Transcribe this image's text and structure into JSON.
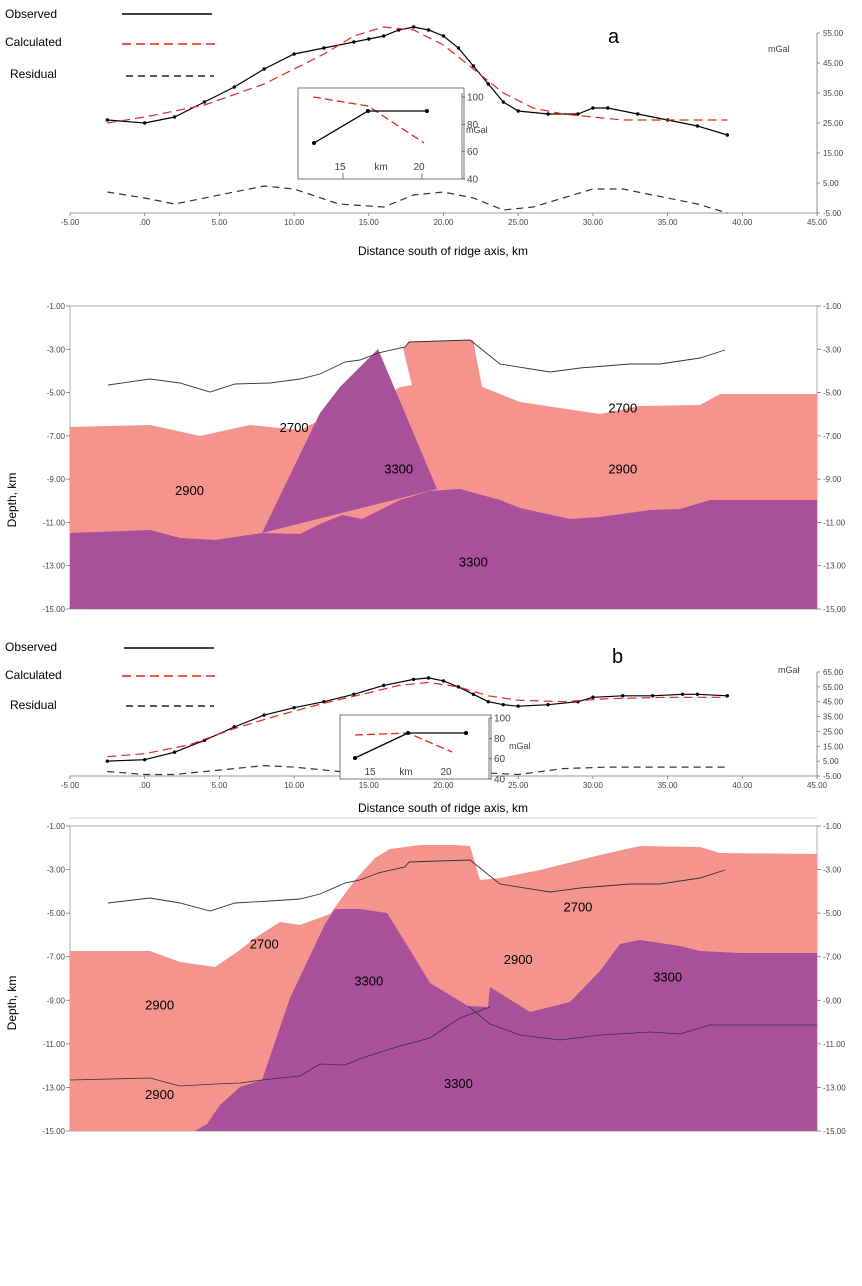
{
  "chart_data": [
    {
      "panel": "a",
      "type": "line",
      "panel_label": "a",
      "xlabel": "Distance south of ridge axis, km",
      "ylabel": "mGal",
      "xlim": [
        -5,
        45
      ],
      "ylim": [
        -5,
        55
      ],
      "xticks": [
        -5,
        0,
        5,
        10,
        15,
        20,
        25,
        30,
        35,
        40,
        45
      ],
      "xtick_labels": [
        "-5.00",
        ".00",
        "5.00",
        "10.00",
        "15.00",
        "20.00",
        "25.00",
        "30.00",
        "35.00",
        "40.00",
        "45.00"
      ],
      "yticks": [
        -5,
        5,
        15,
        25,
        35,
        45,
        55
      ],
      "ytick_labels": [
        "-5.00",
        "5.00",
        "15.00",
        "25.00",
        "35.00",
        "45.00",
        "55.00"
      ],
      "legend": [
        "Observed",
        "Calculated",
        "Residual"
      ],
      "legend_position": "top-left",
      "series": [
        {
          "name": "Observed",
          "color": "#000000",
          "style": "solid-markers",
          "x": [
            -2.5,
            0,
            2,
            4,
            6,
            8,
            10,
            12,
            14,
            15,
            16,
            17,
            18,
            19,
            20,
            21,
            22,
            23,
            24,
            25,
            27,
            29,
            30,
            31,
            33,
            35,
            37,
            39
          ],
          "y": [
            26,
            25,
            27,
            32,
            37,
            43,
            48,
            50,
            52,
            53,
            54,
            56,
            57,
            56,
            54,
            50,
            44,
            38,
            32,
            29,
            28,
            28,
            30,
            30,
            28,
            26,
            24,
            21
          ]
        },
        {
          "name": "Calculated",
          "color": "#e0281e",
          "style": "dashed",
          "x": [
            -2.5,
            0,
            4,
            8,
            12,
            14,
            16,
            18,
            20,
            22,
            24,
            26,
            28,
            30,
            32,
            36,
            39
          ],
          "y": [
            25,
            27,
            31,
            38,
            48,
            54,
            57,
            56,
            51,
            43,
            35,
            30,
            28,
            27,
            26,
            26,
            26
          ]
        },
        {
          "name": "Residual",
          "color": "#333333",
          "style": "dashed",
          "x": [
            -2.5,
            0,
            2,
            5,
            8,
            10,
            13,
            16,
            18,
            20,
            22,
            24,
            26,
            28,
            30,
            32,
            35,
            37,
            39
          ],
          "y": [
            2,
            0,
            -2,
            1,
            4,
            3,
            -2,
            -3,
            1,
            2,
            0,
            -4,
            -3,
            0,
            3,
            3,
            0,
            -2,
            -5
          ]
        }
      ],
      "inset": {
        "xtick_labels": [
          "15",
          "km",
          "20"
        ],
        "yticks": [
          40,
          60,
          80,
          100
        ],
        "ytick_labels": [
          "40",
          "60",
          "80",
          "100"
        ],
        "ylabel": "mGal",
        "observed": {
          "x": [
            11,
            15,
            21
          ],
          "y": [
            66,
            89,
            89
          ]
        },
        "calculated": {
          "x": [
            11,
            15,
            21
          ],
          "y": [
            99,
            91,
            68
          ]
        }
      }
    },
    {
      "panel": "a-model",
      "type": "area",
      "ylabel": "Depth, km",
      "ylim": [
        -15,
        -1
      ],
      "yticks": [
        -1,
        -3,
        -5,
        -7,
        -9,
        -11,
        -13,
        -15
      ],
      "ytick_labels_left": [
        "-1.00",
        "-3.00",
        "-5.00",
        "-7.00",
        "-9.00",
        "-11.00",
        "-13.00",
        "-15.00"
      ],
      "ytick_labels_right": [
        "-1.00",
        "-3.00",
        "-5.00",
        "-7.00",
        "-9.00",
        "-11.00",
        "-13.00",
        "-15.00"
      ],
      "body_labels": [
        {
          "text": "2700",
          "x": 10,
          "y": -6.6
        },
        {
          "text": "2700",
          "x": 32,
          "y": -5.7
        },
        {
          "text": "2900",
          "x": 3,
          "y": -9.5
        },
        {
          "text": "3300",
          "x": 17,
          "y": -8.5
        },
        {
          "text": "2900",
          "x": 32,
          "y": -8.5
        },
        {
          "text": "3300",
          "x": 22,
          "y": -12.8
        }
      ]
    },
    {
      "panel": "b",
      "type": "line",
      "panel_label": "b",
      "xlabel": "Distance south of ridge axis, km",
      "ylabel": "mGal",
      "xlim": [
        -5,
        45
      ],
      "ylim": [
        -5,
        65
      ],
      "xticks": [
        -5,
        0,
        5,
        10,
        15,
        20,
        25,
        30,
        35,
        40,
        45
      ],
      "xtick_labels": [
        "-5.00",
        ".00",
        "5.00",
        "10.00",
        "15.00",
        "20.00",
        "25.00",
        "30.00",
        "35.00",
        "40.00",
        "45.00"
      ],
      "yticks": [
        -5,
        5,
        15,
        25,
        35,
        45,
        55,
        65
      ],
      "ytick_labels": [
        "-5.00",
        "5.00",
        "15.00",
        "25.00",
        "35.00",
        "45.00",
        "55.00",
        "65.00"
      ],
      "legend": [
        "Observed",
        "Calculated",
        "Residual"
      ],
      "legend_position": "top-left",
      "series": [
        {
          "name": "Observed",
          "color": "#000000",
          "style": "solid-markers",
          "x": [
            -2.5,
            0,
            2,
            4,
            6,
            8,
            10,
            12,
            14,
            16,
            18,
            19,
            20,
            21,
            22,
            23,
            24,
            25,
            27,
            29,
            30,
            32,
            34,
            36,
            37,
            39
          ],
          "y": [
            5,
            6,
            11,
            19,
            28,
            36,
            41,
            45,
            50,
            56,
            60,
            61,
            59,
            55,
            50,
            45,
            43,
            42,
            43,
            45,
            48,
            49,
            49,
            50,
            50,
            49
          ]
        },
        {
          "name": "Calculated",
          "color": "#e0281e",
          "style": "dashed",
          "x": [
            -2.5,
            0,
            3,
            6,
            9,
            12,
            15,
            17,
            19,
            21,
            23,
            25,
            28,
            31,
            35,
            39
          ],
          "y": [
            8,
            10,
            16,
            27,
            36,
            44,
            51,
            56,
            58,
            55,
            49,
            46,
            45,
            47,
            48,
            48
          ]
        },
        {
          "name": "Residual",
          "color": "#333333",
          "style": "dashed",
          "x": [
            -2.5,
            0,
            2,
            5,
            8,
            10,
            13,
            15,
            17,
            19,
            21,
            23,
            25,
            28,
            31,
            35,
            39
          ],
          "y": [
            -2,
            -4,
            -4,
            -1,
            2,
            1,
            -2,
            -2,
            0,
            1,
            -1,
            -3,
            -4,
            0,
            1,
            1,
            1
          ]
        }
      ],
      "inset": {
        "xtick_labels": [
          "15",
          "km",
          "20"
        ],
        "yticks": [
          40,
          60,
          80,
          100
        ],
        "ytick_labels": [
          "40",
          "60",
          "80",
          "100"
        ],
        "ylabel": "mGal",
        "observed": {
          "x": [
            12,
            17,
            23
          ],
          "y": [
            62,
            87,
            87
          ]
        },
        "calculated": {
          "x": [
            12,
            17,
            22
          ],
          "y": [
            80,
            86,
            69
          ]
        }
      }
    },
    {
      "panel": "b-model",
      "type": "area",
      "ylabel": "Depth, km",
      "ylim": [
        -15,
        -1
      ],
      "yticks": [
        -1,
        -3,
        -5,
        -7,
        -9,
        -11,
        -13,
        -15
      ],
      "ytick_labels_left": [
        "-1.00",
        "-3.00",
        "-5.00",
        "-7.00",
        "-9.00",
        "-11.00",
        "-13.00",
        "-15.00"
      ],
      "ytick_labels_right": [
        "-1.00",
        "-3.00",
        "-5.00",
        "-7.00",
        "-9.00",
        "-11.00",
        "-13.00",
        "-15.00"
      ],
      "body_labels": [
        {
          "text": "2700",
          "x": 8,
          "y": -6.4
        },
        {
          "text": "2700",
          "x": 29,
          "y": -4.7
        },
        {
          "text": "2900",
          "x": 1,
          "y": -9.2
        },
        {
          "text": "2900",
          "x": 1,
          "y": -13.3
        },
        {
          "text": "3300",
          "x": 15,
          "y": -8.1
        },
        {
          "text": "2900",
          "x": 25,
          "y": -7.1
        },
        {
          "text": "3300",
          "x": 35,
          "y": -7.9
        },
        {
          "text": "3300",
          "x": 21,
          "y": -12.8
        }
      ]
    }
  ],
  "colors": {
    "density_2900": "#f4948c",
    "density_3300": "#a8509a",
    "observed": "#000000",
    "calculated": "#e0281e",
    "residual": "#333333"
  }
}
